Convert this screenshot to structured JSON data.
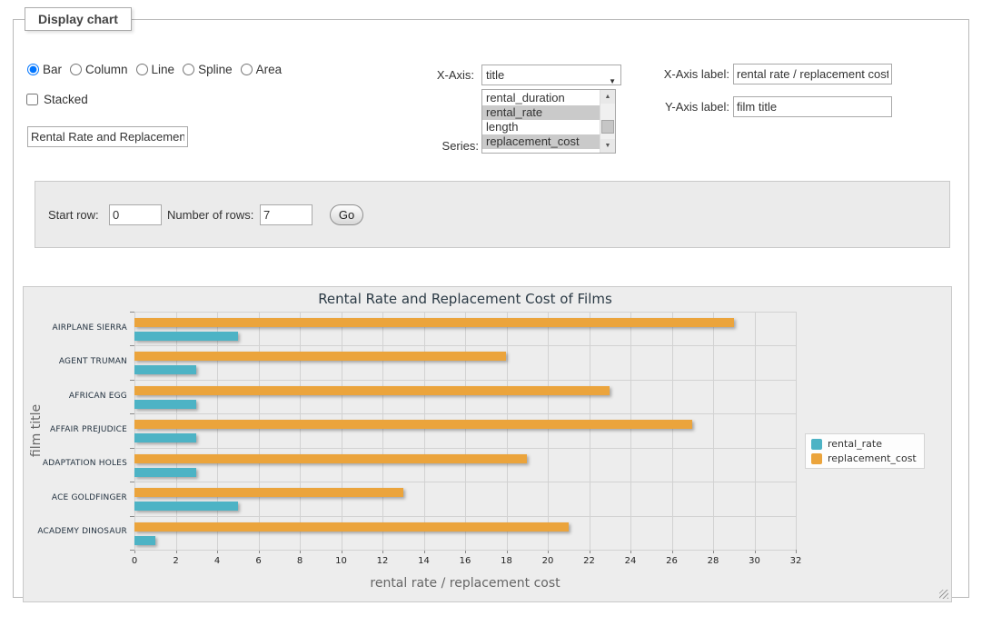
{
  "panel": {
    "legend": "Display chart"
  },
  "chart_types": {
    "options": [
      {
        "label": "Bar",
        "selected": true
      },
      {
        "label": "Column",
        "selected": false
      },
      {
        "label": "Line",
        "selected": false
      },
      {
        "label": "Spline",
        "selected": false
      },
      {
        "label": "Area",
        "selected": false
      }
    ]
  },
  "stacked": {
    "label": "Stacked",
    "checked": false
  },
  "title_input": {
    "value": "Rental Rate and Replacement Cost of Films"
  },
  "x_axis_select": {
    "caption": "X-Axis:",
    "selected_value": "title"
  },
  "series_select": {
    "caption": "Series:",
    "options": [
      {
        "label": "rental_duration",
        "selected": false
      },
      {
        "label": "rental_rate",
        "selected": true
      },
      {
        "label": "length",
        "selected": false
      },
      {
        "label": "replacement_cost",
        "selected": true
      }
    ]
  },
  "x_axis_label": {
    "caption": "X-Axis label:",
    "value": "rental rate / replacement cost"
  },
  "y_axis_label": {
    "caption": "Y-Axis label:",
    "value": "film title"
  },
  "row_controls": {
    "start_row_label": "Start row:",
    "start_row_value": "0",
    "num_rows_label": "Number of rows:",
    "num_rows_value": "7",
    "go_label": "Go"
  },
  "chart_data": {
    "type": "bar",
    "title": "Rental Rate and Replacement Cost of Films",
    "categories": [
      "AIRPLANE SIERRA",
      "AGENT TRUMAN",
      "AFRICAN EGG",
      "AFFAIR PREJUDICE",
      "ADAPTATION HOLES",
      "ACE GOLDFINGER",
      "ACADEMY DINOSAUR"
    ],
    "series": [
      {
        "name": "rental_rate",
        "color": "#4DB3C5",
        "values": [
          4.99,
          2.99,
          2.99,
          2.99,
          2.99,
          4.99,
          0.99
        ]
      },
      {
        "name": "replacement_cost",
        "color": "#EBA43C",
        "values": [
          28.99,
          17.99,
          22.99,
          26.99,
          18.99,
          12.99,
          20.99
        ]
      }
    ],
    "xlabel": "rental rate / replacement cost",
    "ylabel": "film title",
    "xlim": [
      0,
      32
    ],
    "tick_step": 2,
    "grid": true,
    "legend_position": "right"
  }
}
